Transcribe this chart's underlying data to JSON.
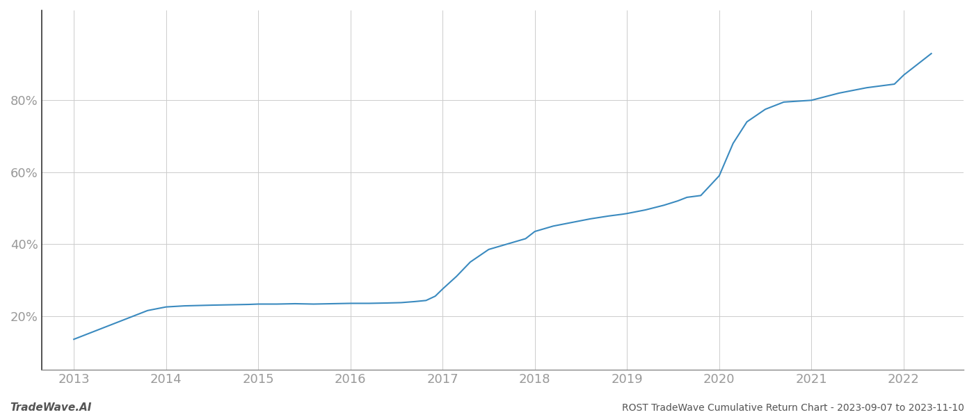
{
  "x_values": [
    2013.0,
    2013.15,
    2013.4,
    2013.6,
    2013.8,
    2014.0,
    2014.2,
    2014.5,
    2014.7,
    2014.9,
    2015.0,
    2015.2,
    2015.4,
    2015.6,
    2015.8,
    2016.0,
    2016.2,
    2016.4,
    2016.55,
    2016.7,
    2016.82,
    2016.92,
    2017.0,
    2017.15,
    2017.3,
    2017.5,
    2017.7,
    2017.9,
    2018.0,
    2018.2,
    2018.4,
    2018.6,
    2018.8,
    2018.95,
    2019.0,
    2019.2,
    2019.4,
    2019.55,
    2019.65,
    2019.8,
    2020.0,
    2020.15,
    2020.3,
    2020.5,
    2020.7,
    2021.0,
    2021.3,
    2021.6,
    2021.9,
    2022.0,
    2022.3
  ],
  "y_values": [
    13.5,
    15.0,
    17.5,
    19.5,
    21.5,
    22.5,
    22.8,
    23.0,
    23.1,
    23.2,
    23.3,
    23.3,
    23.4,
    23.3,
    23.4,
    23.5,
    23.5,
    23.6,
    23.7,
    24.0,
    24.3,
    25.5,
    27.5,
    31.0,
    35.0,
    38.5,
    40.0,
    41.5,
    43.5,
    45.0,
    46.0,
    47.0,
    47.8,
    48.3,
    48.5,
    49.5,
    50.8,
    52.0,
    53.0,
    53.5,
    59.0,
    68.0,
    74.0,
    77.5,
    79.5,
    80.0,
    82.0,
    83.5,
    84.5,
    87.0,
    93.0
  ],
  "line_color": "#3a8abf",
  "line_width": 1.5,
  "background_color": "#ffffff",
  "grid_color": "#cccccc",
  "grid_linewidth": 0.7,
  "yticks": [
    20,
    40,
    60,
    80
  ],
  "tick_color": "#999999",
  "tick_labelsize": 13,
  "xlim": [
    2012.65,
    2022.65
  ],
  "ylim": [
    5,
    105
  ],
  "xlabel_years": [
    2013,
    2014,
    2015,
    2016,
    2017,
    2018,
    2019,
    2020,
    2021,
    2022
  ],
  "left_spine_color": "#333333",
  "bottom_spine_color": "#888888",
  "bottom_left_text": "TradeWave.AI",
  "bottom_right_text": "ROST TradeWave Cumulative Return Chart - 2023-09-07 to 2023-11-10",
  "bottom_text_color": "#555555",
  "bottom_left_fontsize": 11,
  "bottom_right_fontsize": 10
}
